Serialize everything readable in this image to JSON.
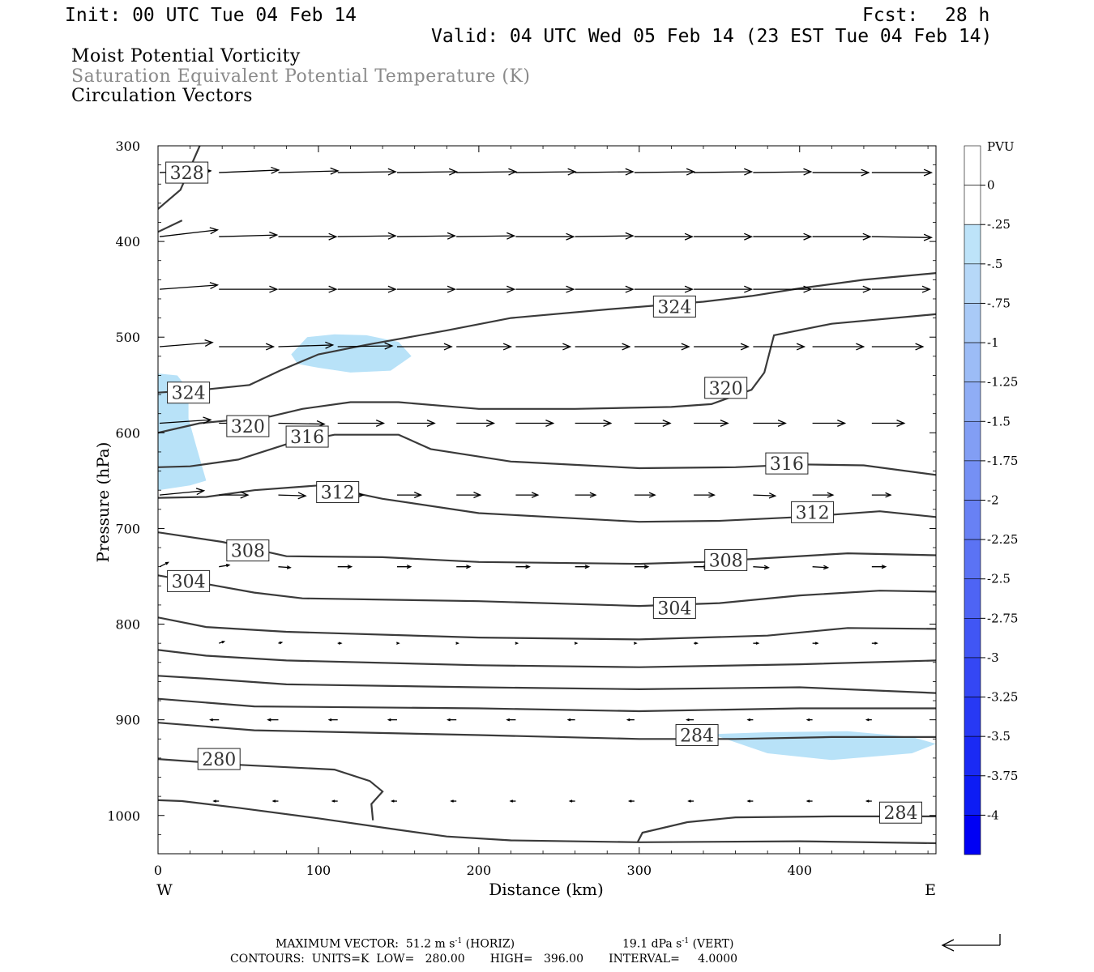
{
  "header": {
    "init": "Init: 00 UTC Tue 04 Feb 14",
    "fcst_label": "Fcst:",
    "fcst_value": "28 h",
    "valid": "Valid: 04 UTC Wed 05 Feb 14 (23 EST Tue 04 Feb 14)",
    "field1": "Moist Potential Vorticity",
    "field2": "Saturation Equivalent Potential Temperature (K)",
    "field3": "Circulation Vectors"
  },
  "footer": {
    "max_vector": "MAXIMUM VECTOR:  51.2 m s",
    "max_vector_exp": "-1",
    "max_vector_h": " (HORIZ)",
    "vert": "19.1 dPa s",
    "vert_exp": "-1",
    "vert_tail": " (VERT)",
    "contours": "CONTOURS:  UNITS=K  LOW=   280.00       HIGH=   396.00       INTERVAL=     4.0000"
  },
  "colors": {
    "contour": "#3a3a3a",
    "pv_shade": "#b8e2f8",
    "pv_shade_dark": "#a7c7f5"
  },
  "colorbar": {
    "title": "PVU",
    "labels": [
      "0",
      "-.25",
      "-.5",
      "-.75",
      "-1",
      "-1.25",
      "-1.5",
      "-1.75",
      "-2",
      "-2.25",
      "-2.5",
      "-2.75",
      "-3",
      "-3.25",
      "-3.5",
      "-3.75",
      "-4"
    ],
    "colors": [
      "#ffffff",
      "#ffffff",
      "#bde3f9",
      "#b6d8f8",
      "#a9caf7",
      "#9cbcf6",
      "#8fadf5",
      "#829ef4",
      "#7590f4",
      "#6881f4",
      "#5b73f4",
      "#4e64f4",
      "#4156f4",
      "#3447f4",
      "#2739f4",
      "#1a2af4",
      "#0d1cf4",
      "#0000f4"
    ]
  },
  "chart_data": {
    "type": "cross-section",
    "xlabel": "Distance (km)",
    "ylabel": "Pressure (hPa)",
    "xlim": [
      0,
      485
    ],
    "ylim": [
      300,
      1040
    ],
    "x_ticks": [
      0,
      100,
      200,
      300,
      400
    ],
    "y_ticks": [
      300,
      400,
      500,
      600,
      700,
      800,
      900,
      1000
    ],
    "x_end_labels": {
      "left": "W",
      "right": "E"
    },
    "contour_levels": [
      280,
      284,
      304,
      308,
      312,
      316,
      320,
      324,
      328
    ],
    "contour_labels": [
      {
        "text": "328",
        "x": 18,
        "p": 328
      },
      {
        "text": "324",
        "x": 322,
        "p": 468
      },
      {
        "text": "324",
        "x": 19,
        "p": 558
      },
      {
        "text": "320",
        "x": 354,
        "p": 553
      },
      {
        "text": "320",
        "x": 56,
        "p": 593
      },
      {
        "text": "316",
        "x": 93,
        "p": 604
      },
      {
        "text": "316",
        "x": 392,
        "p": 632
      },
      {
        "text": "312",
        "x": 112,
        "p": 662
      },
      {
        "text": "312",
        "x": 408,
        "p": 683
      },
      {
        "text": "308",
        "x": 56,
        "p": 723
      },
      {
        "text": "308",
        "x": 354,
        "p": 733
      },
      {
        "text": "304",
        "x": 19,
        "p": 755
      },
      {
        "text": "304",
        "x": 322,
        "p": 783
      },
      {
        "text": "284",
        "x": 336,
        "p": 916
      },
      {
        "text": "280",
        "x": 38,
        "p": 941
      },
      {
        "text": "284",
        "x": 463,
        "p": 997
      }
    ],
    "contour_lines": [
      [
        [
          0,
          366
        ],
        [
          14,
          346
        ],
        [
          26,
          300
        ]
      ],
      [
        [
          0,
          390
        ],
        [
          15,
          378
        ]
      ],
      [
        [
          0,
          558
        ],
        [
          28,
          555
        ],
        [
          57,
          550
        ],
        [
          76,
          535
        ],
        [
          100,
          518
        ],
        [
          130,
          508
        ],
        [
          180,
          493
        ],
        [
          220,
          480
        ],
        [
          280,
          471
        ],
        [
          340,
          463
        ],
        [
          370,
          457
        ],
        [
          400,
          449
        ],
        [
          440,
          440
        ],
        [
          485,
          433
        ]
      ],
      [
        [
          0,
          600
        ],
        [
          26,
          590
        ],
        [
          70,
          583
        ],
        [
          90,
          575
        ],
        [
          120,
          568
        ],
        [
          150,
          568
        ],
        [
          200,
          575
        ],
        [
          260,
          575
        ],
        [
          320,
          573
        ],
        [
          345,
          570
        ],
        [
          370,
          555
        ],
        [
          378,
          537
        ],
        [
          384,
          498
        ],
        [
          420,
          486
        ],
        [
          485,
          476
        ]
      ],
      [
        [
          0,
          636
        ],
        [
          20,
          635
        ],
        [
          50,
          628
        ],
        [
          80,
          612
        ],
        [
          110,
          602
        ],
        [
          150,
          602
        ],
        [
          170,
          617
        ],
        [
          220,
          630
        ],
        [
          300,
          637
        ],
        [
          360,
          636
        ],
        [
          400,
          633
        ],
        [
          440,
          634
        ],
        [
          485,
          644
        ]
      ],
      [
        [
          0,
          668
        ],
        [
          30,
          667
        ],
        [
          60,
          660
        ],
        [
          100,
          655
        ],
        [
          140,
          669
        ],
        [
          200,
          684
        ],
        [
          300,
          693
        ],
        [
          350,
          692
        ],
        [
          400,
          688
        ],
        [
          450,
          682
        ],
        [
          485,
          688
        ]
      ],
      [
        [
          0,
          704
        ],
        [
          40,
          714
        ],
        [
          80,
          729
        ],
        [
          140,
          730
        ],
        [
          200,
          735
        ],
        [
          300,
          737
        ],
        [
          340,
          735
        ],
        [
          380,
          731
        ],
        [
          430,
          726
        ],
        [
          485,
          728
        ]
      ],
      [
        [
          0,
          749
        ],
        [
          30,
          758
        ],
        [
          60,
          767
        ],
        [
          90,
          773
        ],
        [
          200,
          776
        ],
        [
          300,
          781
        ],
        [
          350,
          778
        ],
        [
          400,
          770
        ],
        [
          450,
          765
        ],
        [
          485,
          766
        ]
      ],
      [
        [
          0,
          793
        ],
        [
          30,
          803
        ],
        [
          80,
          808
        ],
        [
          200,
          814
        ],
        [
          300,
          816
        ],
        [
          380,
          812
        ],
        [
          430,
          804
        ],
        [
          485,
          805
        ]
      ],
      [
        [
          0,
          827
        ],
        [
          30,
          833
        ],
        [
          80,
          838
        ],
        [
          200,
          843
        ],
        [
          300,
          845
        ],
        [
          400,
          842
        ],
        [
          485,
          838
        ]
      ],
      [
        [
          0,
          854
        ],
        [
          30,
          857
        ],
        [
          80,
          863
        ],
        [
          200,
          866
        ],
        [
          300,
          868
        ],
        [
          400,
          866
        ],
        [
          485,
          872
        ]
      ],
      [
        [
          0,
          878
        ],
        [
          60,
          886
        ],
        [
          200,
          888
        ],
        [
          300,
          891
        ],
        [
          400,
          888
        ],
        [
          485,
          888
        ]
      ],
      [
        [
          0,
          903
        ],
        [
          60,
          911
        ],
        [
          200,
          916
        ],
        [
          300,
          920
        ],
        [
          360,
          920
        ],
        [
          420,
          918
        ],
        [
          485,
          918
        ]
      ],
      [
        [
          0,
          941
        ],
        [
          50,
          947
        ],
        [
          110,
          952
        ],
        [
          132,
          964
        ],
        [
          140,
          975
        ],
        [
          133,
          988
        ],
        [
          134,
          1005
        ]
      ],
      [
        [
          0,
          984
        ],
        [
          15,
          985
        ],
        [
          50,
          992
        ],
        [
          100,
          1003
        ],
        [
          150,
          1015
        ],
        [
          180,
          1022
        ],
        [
          220,
          1026
        ],
        [
          300,
          1028
        ],
        [
          400,
          1027
        ],
        [
          485,
          1029
        ]
      ],
      [
        [
          299,
          1028
        ],
        [
          302,
          1018
        ],
        [
          330,
          1007
        ],
        [
          360,
          1002
        ],
        [
          420,
          1001
        ],
        [
          485,
          1001
        ]
      ]
    ],
    "pv_regions": [
      [
        [
          0,
          538
        ],
        [
          12,
          540
        ],
        [
          19,
          555
        ],
        [
          19,
          585
        ],
        [
          24,
          615
        ],
        [
          30,
          650
        ],
        [
          20,
          655
        ],
        [
          0,
          660
        ]
      ],
      [
        [
          83,
          518
        ],
        [
          93,
          500
        ],
        [
          110,
          497
        ],
        [
          130,
          498
        ],
        [
          150,
          505
        ],
        [
          158,
          520
        ],
        [
          145,
          535
        ],
        [
          120,
          537
        ],
        [
          100,
          532
        ],
        [
          87,
          528
        ]
      ],
      [
        [
          345,
          915
        ],
        [
          380,
          913
        ],
        [
          430,
          912
        ],
        [
          470,
          918
        ],
        [
          485,
          925
        ],
        [
          470,
          935
        ],
        [
          420,
          942
        ],
        [
          380,
          935
        ]
      ]
    ],
    "vector_rows": [
      {
        "p": 328,
        "x": [
          0,
          37,
          74,
          111,
          148,
          185,
          222,
          259,
          296,
          333,
          370,
          407,
          444
        ],
        "u": [
          30,
          35,
          35,
          34,
          35,
          35,
          35,
          34,
          35,
          34,
          34,
          33,
          35
        ],
        "v": [
          2,
          3,
          2,
          1,
          1,
          1,
          1,
          1,
          1,
          1,
          1,
          0,
          0
        ]
      },
      {
        "p": 395,
        "x": [
          0,
          37,
          74,
          111,
          148,
          185,
          222,
          259,
          296,
          333,
          370,
          407,
          444
        ],
        "u": [
          34,
          34,
          34,
          34,
          34,
          34,
          34,
          34,
          34,
          34,
          34,
          34,
          35
        ],
        "v": [
          8,
          2,
          0,
          1,
          1,
          1,
          0,
          1,
          0,
          0,
          0,
          0,
          -1
        ]
      },
      {
        "p": 450,
        "x": [
          0,
          37,
          74,
          111,
          148,
          185,
          222,
          259,
          296,
          333,
          370,
          407,
          444
        ],
        "u": [
          34,
          34,
          34,
          34,
          34,
          34,
          34,
          34,
          34,
          34,
          34,
          34,
          34
        ],
        "v": [
          5,
          0,
          0,
          0,
          0,
          0,
          0,
          0,
          0,
          0,
          0,
          0,
          0
        ]
      },
      {
        "p": 510,
        "x": [
          0,
          37,
          74,
          111,
          148,
          185,
          222,
          259,
          296,
          333,
          370,
          407,
          444
        ],
        "u": [
          31,
          32,
          32,
          32,
          32,
          32,
          32,
          32,
          32,
          32,
          30,
          30,
          30
        ],
        "v": [
          5,
          0,
          2,
          1,
          0,
          0,
          0,
          0,
          0,
          0,
          0,
          0,
          0
        ]
      },
      {
        "p": 590,
        "x": [
          0,
          37,
          74,
          111,
          148,
          185,
          222,
          259,
          296,
          333,
          370,
          407,
          444
        ],
        "u": [
          30,
          27,
          27,
          27,
          22,
          22,
          22,
          21,
          21,
          20,
          19,
          19,
          19
        ],
        "v": [
          4,
          0,
          -1,
          0,
          0,
          0,
          0,
          0,
          0,
          0,
          0,
          0,
          0
        ]
      },
      {
        "p": 665,
        "x": [
          0,
          37,
          74,
          111,
          148,
          185,
          222,
          259,
          296,
          333,
          370,
          407,
          444
        ],
        "u": [
          26,
          17,
          16,
          15,
          14,
          14,
          13,
          12,
          12,
          12,
          13,
          12,
          11
        ],
        "v": [
          5,
          0,
          -1,
          0,
          0,
          0,
          0,
          0,
          0,
          0,
          -1,
          0,
          0
        ]
      },
      {
        "p": 740,
        "x": [
          0,
          37,
          74,
          111,
          148,
          185,
          222,
          259,
          296,
          333,
          370,
          407,
          444
        ],
        "u": [
          5,
          6,
          7,
          8,
          8,
          8,
          8,
          8,
          8,
          8,
          9,
          9,
          8
        ],
        "v": [
          5,
          2,
          -1,
          0,
          0,
          0,
          0,
          0,
          0,
          0,
          -1,
          -1,
          0
        ]
      },
      {
        "p": 820,
        "x": [
          37,
          74,
          111,
          148,
          185,
          222,
          259,
          296,
          333,
          370,
          407,
          444
        ],
        "u": [
          3,
          2,
          2,
          1,
          1,
          1,
          1,
          1,
          2,
          3,
          3,
          3
        ],
        "v": [
          2,
          1,
          0,
          0,
          0,
          0,
          0,
          0,
          0,
          0,
          0,
          0
        ]
      },
      {
        "p": 900,
        "x": [
          37,
          74,
          111,
          148,
          185,
          222,
          259,
          296,
          333,
          370,
          407,
          444
        ],
        "u": [
          -5,
          -6,
          -5,
          -5,
          -5,
          -5,
          -4,
          -4,
          -4,
          -3,
          -3,
          -3
        ],
        "v": [
          0,
          0,
          0,
          0,
          0,
          0,
          0,
          0,
          0,
          0,
          0,
          0
        ]
      },
      {
        "p": 985,
        "x": [
          37,
          74,
          111,
          148,
          185,
          222,
          259,
          296,
          333,
          370,
          407,
          444
        ],
        "u": [
          -3,
          -3,
          -3,
          -3,
          -3,
          -3,
          -3,
          -3,
          -3,
          -3,
          -3,
          -3
        ],
        "v": [
          0,
          0,
          0,
          0,
          0,
          0,
          0,
          0,
          0,
          0,
          0,
          0
        ]
      }
    ]
  }
}
